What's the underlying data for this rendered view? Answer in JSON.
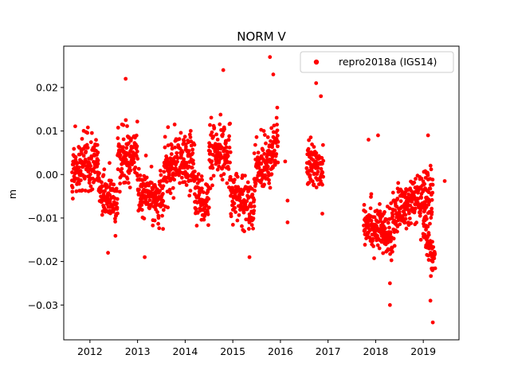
{
  "chart_data": {
    "type": "scatter",
    "title": "NORM V",
    "xlabel": "",
    "ylabel": "m",
    "xlim": [
      2011.45,
      2019.75
    ],
    "ylim": [
      -0.038,
      0.0295
    ],
    "x_ticks": [
      2012,
      2013,
      2014,
      2015,
      2016,
      2017,
      2018,
      2019
    ],
    "x_tick_labels": [
      "2012",
      "2013",
      "2014",
      "2015",
      "2016",
      "2017",
      "2018",
      "2019"
    ],
    "y_ticks": [
      -0.03,
      -0.02,
      -0.01,
      0.0,
      0.01,
      0.02
    ],
    "y_tick_labels": [
      "−0.03",
      "−0.02",
      "−0.01",
      "0.00",
      "0.01",
      "0.02"
    ],
    "grid": false,
    "legend_position": "top-right",
    "series": [
      {
        "name": "repro2018a (IGS14)",
        "color": "#ff0000",
        "marker": "circle",
        "segments": [
          {
            "x_start": 2011.62,
            "x_end": 2012.17,
            "center_start": 0.001,
            "center_end": 0.003,
            "spread": 0.006
          },
          {
            "x_start": 2012.17,
            "x_end": 2012.58,
            "center_start": -0.003,
            "center_end": -0.007,
            "spread": 0.0055
          },
          {
            "x_start": 2012.58,
            "x_end": 2013.0,
            "center_start": 0.004,
            "center_end": 0.004,
            "spread": 0.0055
          },
          {
            "x_start": 2013.0,
            "x_end": 2013.55,
            "center_start": -0.004,
            "center_end": -0.006,
            "spread": 0.005
          },
          {
            "x_start": 2013.55,
            "x_end": 2014.2,
            "center_start": 0.001,
            "center_end": 0.003,
            "spread": 0.006
          },
          {
            "x_start": 2014.2,
            "x_end": 2014.5,
            "center_start": -0.004,
            "center_end": -0.007,
            "spread": 0.005
          },
          {
            "x_start": 2014.5,
            "x_end": 2014.95,
            "center_start": 0.004,
            "center_end": 0.005,
            "spread": 0.006
          },
          {
            "x_start": 2014.95,
            "x_end": 2015.45,
            "center_start": -0.004,
            "center_end": -0.008,
            "spread": 0.005
          },
          {
            "x_start": 2015.45,
            "x_end": 2015.95,
            "center_start": 0.0,
            "center_end": 0.007,
            "spread": 0.006
          },
          {
            "x_start": 2016.55,
            "x_end": 2016.9,
            "center_start": 0.002,
            "center_end": 0.002,
            "spread": 0.005
          },
          {
            "x_start": 2017.75,
            "x_end": 2018.35,
            "center_start": -0.01,
            "center_end": -0.015,
            "spread": 0.005
          },
          {
            "x_start": 2018.35,
            "x_end": 2019.2,
            "center_start": -0.009,
            "center_end": -0.004,
            "spread": 0.005
          },
          {
            "x_start": 2019.0,
            "x_end": 2019.25,
            "center_start": -0.012,
            "center_end": -0.02,
            "spread": 0.004
          }
        ],
        "extra_points": [
          [
            2012.38,
            -0.018
          ],
          [
            2012.75,
            0.022
          ],
          [
            2013.15,
            -0.019
          ],
          [
            2014.8,
            0.024
          ],
          [
            2015.78,
            0.027
          ],
          [
            2015.85,
            0.023
          ],
          [
            2015.35,
            -0.019
          ],
          [
            2016.1,
            0.003
          ],
          [
            2016.15,
            -0.006
          ],
          [
            2016.15,
            -0.011
          ],
          [
            2016.75,
            0.021
          ],
          [
            2016.85,
            0.018
          ],
          [
            2016.88,
            -0.009
          ],
          [
            2017.85,
            0.008
          ],
          [
            2018.05,
            0.009
          ],
          [
            2018.3,
            -0.03
          ],
          [
            2018.3,
            -0.025
          ],
          [
            2019.15,
            -0.029
          ],
          [
            2019.2,
            -0.034
          ],
          [
            2019.1,
            0.009
          ],
          [
            2019.45,
            -0.0015
          ],
          [
            2018.95,
            -0.015
          ]
        ]
      }
    ]
  }
}
